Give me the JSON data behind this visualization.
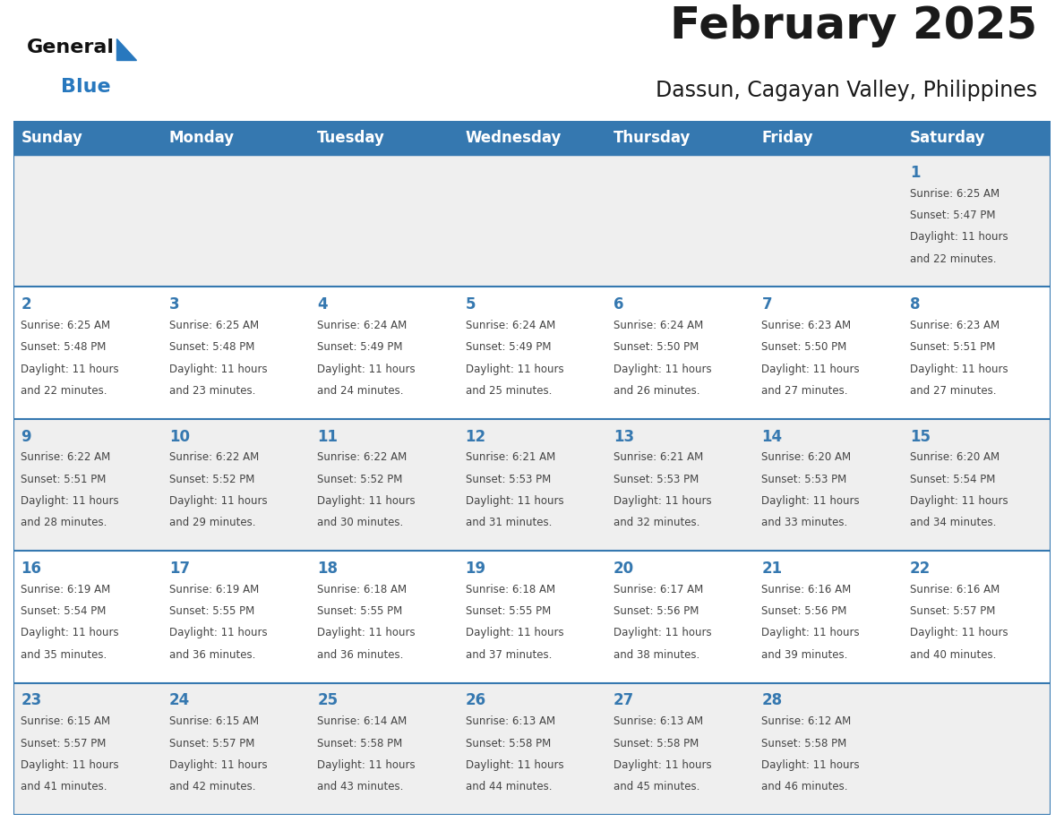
{
  "title": "February 2025",
  "subtitle": "Dassun, Cagayan Valley, Philippines",
  "days_of_week": [
    "Sunday",
    "Monday",
    "Tuesday",
    "Wednesday",
    "Thursday",
    "Friday",
    "Saturday"
  ],
  "header_bg": "#3578b0",
  "header_text": "#ffffff",
  "row_bg_light": "#efefef",
  "row_bg_white": "#ffffff",
  "separator_color": "#3578b0",
  "day_num_color": "#3578b0",
  "cell_text_color": "#444444",
  "background_color": "#ffffff",
  "title_color": "#1a1a1a",
  "subtitle_color": "#1a1a1a",
  "logo_general_color": "#111111",
  "logo_blue_color": "#2878be",
  "calendar_data": [
    [
      {
        "day": null,
        "info": ""
      },
      {
        "day": null,
        "info": ""
      },
      {
        "day": null,
        "info": ""
      },
      {
        "day": null,
        "info": ""
      },
      {
        "day": null,
        "info": ""
      },
      {
        "day": null,
        "info": ""
      },
      {
        "day": 1,
        "info": "Sunrise: 6:25 AM\nSunset: 5:47 PM\nDaylight: 11 hours\nand 22 minutes."
      }
    ],
    [
      {
        "day": 2,
        "info": "Sunrise: 6:25 AM\nSunset: 5:48 PM\nDaylight: 11 hours\nand 22 minutes."
      },
      {
        "day": 3,
        "info": "Sunrise: 6:25 AM\nSunset: 5:48 PM\nDaylight: 11 hours\nand 23 minutes."
      },
      {
        "day": 4,
        "info": "Sunrise: 6:24 AM\nSunset: 5:49 PM\nDaylight: 11 hours\nand 24 minutes."
      },
      {
        "day": 5,
        "info": "Sunrise: 6:24 AM\nSunset: 5:49 PM\nDaylight: 11 hours\nand 25 minutes."
      },
      {
        "day": 6,
        "info": "Sunrise: 6:24 AM\nSunset: 5:50 PM\nDaylight: 11 hours\nand 26 minutes."
      },
      {
        "day": 7,
        "info": "Sunrise: 6:23 AM\nSunset: 5:50 PM\nDaylight: 11 hours\nand 27 minutes."
      },
      {
        "day": 8,
        "info": "Sunrise: 6:23 AM\nSunset: 5:51 PM\nDaylight: 11 hours\nand 27 minutes."
      }
    ],
    [
      {
        "day": 9,
        "info": "Sunrise: 6:22 AM\nSunset: 5:51 PM\nDaylight: 11 hours\nand 28 minutes."
      },
      {
        "day": 10,
        "info": "Sunrise: 6:22 AM\nSunset: 5:52 PM\nDaylight: 11 hours\nand 29 minutes."
      },
      {
        "day": 11,
        "info": "Sunrise: 6:22 AM\nSunset: 5:52 PM\nDaylight: 11 hours\nand 30 minutes."
      },
      {
        "day": 12,
        "info": "Sunrise: 6:21 AM\nSunset: 5:53 PM\nDaylight: 11 hours\nand 31 minutes."
      },
      {
        "day": 13,
        "info": "Sunrise: 6:21 AM\nSunset: 5:53 PM\nDaylight: 11 hours\nand 32 minutes."
      },
      {
        "day": 14,
        "info": "Sunrise: 6:20 AM\nSunset: 5:53 PM\nDaylight: 11 hours\nand 33 minutes."
      },
      {
        "day": 15,
        "info": "Sunrise: 6:20 AM\nSunset: 5:54 PM\nDaylight: 11 hours\nand 34 minutes."
      }
    ],
    [
      {
        "day": 16,
        "info": "Sunrise: 6:19 AM\nSunset: 5:54 PM\nDaylight: 11 hours\nand 35 minutes."
      },
      {
        "day": 17,
        "info": "Sunrise: 6:19 AM\nSunset: 5:55 PM\nDaylight: 11 hours\nand 36 minutes."
      },
      {
        "day": 18,
        "info": "Sunrise: 6:18 AM\nSunset: 5:55 PM\nDaylight: 11 hours\nand 36 minutes."
      },
      {
        "day": 19,
        "info": "Sunrise: 6:18 AM\nSunset: 5:55 PM\nDaylight: 11 hours\nand 37 minutes."
      },
      {
        "day": 20,
        "info": "Sunrise: 6:17 AM\nSunset: 5:56 PM\nDaylight: 11 hours\nand 38 minutes."
      },
      {
        "day": 21,
        "info": "Sunrise: 6:16 AM\nSunset: 5:56 PM\nDaylight: 11 hours\nand 39 minutes."
      },
      {
        "day": 22,
        "info": "Sunrise: 6:16 AM\nSunset: 5:57 PM\nDaylight: 11 hours\nand 40 minutes."
      }
    ],
    [
      {
        "day": 23,
        "info": "Sunrise: 6:15 AM\nSunset: 5:57 PM\nDaylight: 11 hours\nand 41 minutes."
      },
      {
        "day": 24,
        "info": "Sunrise: 6:15 AM\nSunset: 5:57 PM\nDaylight: 11 hours\nand 42 minutes."
      },
      {
        "day": 25,
        "info": "Sunrise: 6:14 AM\nSunset: 5:58 PM\nDaylight: 11 hours\nand 43 minutes."
      },
      {
        "day": 26,
        "info": "Sunrise: 6:13 AM\nSunset: 5:58 PM\nDaylight: 11 hours\nand 44 minutes."
      },
      {
        "day": 27,
        "info": "Sunrise: 6:13 AM\nSunset: 5:58 PM\nDaylight: 11 hours\nand 45 minutes."
      },
      {
        "day": 28,
        "info": "Sunrise: 6:12 AM\nSunset: 5:58 PM\nDaylight: 11 hours\nand 46 minutes."
      },
      {
        "day": null,
        "info": ""
      }
    ]
  ]
}
